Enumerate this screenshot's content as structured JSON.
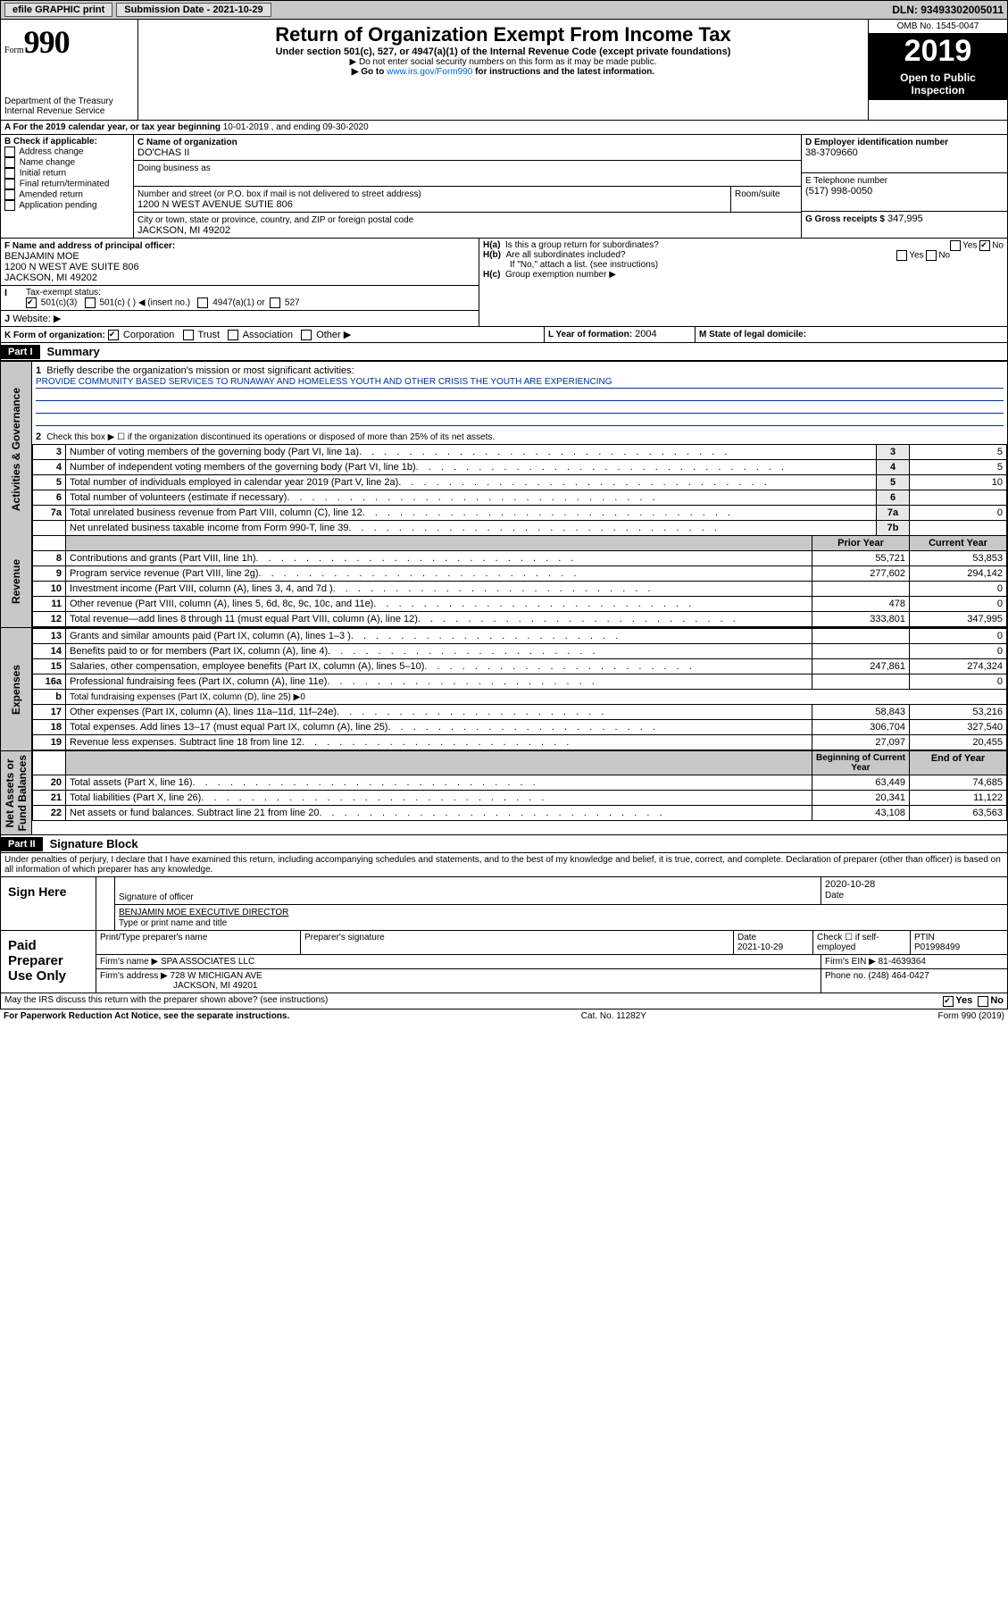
{
  "top": {
    "efile": "efile GRAPHIC print",
    "submission": "Submission Date - 2021-10-29",
    "dln": "DLN: 93493302005011"
  },
  "header": {
    "formword": "Form",
    "form": "990",
    "dept": "Department of the Treasury\nInternal Revenue Service",
    "title": "Return of Organization Exempt From Income Tax",
    "sub": "Under section 501(c), 527, or 4947(a)(1) of the Internal Revenue Code (except private foundations)",
    "note1": "▶ Do not enter social security numbers on this form as it may be made public.",
    "note2a": "▶ Go to ",
    "note2link": "www.irs.gov/Form990",
    "note2b": " for instructions and the latest information.",
    "omb": "OMB No. 1545-0047",
    "year": "2019",
    "open": "Open to Public Inspection"
  },
  "lineA": {
    "prefix": "A  For the 2019 calendar year, or tax year beginning ",
    "begin": "10-01-2019",
    "mid": " , and ending ",
    "end": "09-30-2020"
  },
  "boxB": {
    "label": "B Check if applicable:",
    "opts": [
      "Address change",
      "Name change",
      "Initial return",
      "Final return/terminated",
      "Amended return",
      "Application pending"
    ]
  },
  "boxC": {
    "label": "C Name of organization",
    "org": "DO'CHAS II",
    "dba_label": "Doing business as",
    "addr_label": "Number and street (or P.O. box if mail is not delivered to street address)",
    "room": "Room/suite",
    "addr": "1200 N WEST AVENUE SUTIE 806",
    "city_label": "City or town, state or province, country, and ZIP or foreign postal code",
    "city": "JACKSON, MI  49202"
  },
  "boxD": {
    "label": "D Employer identification number",
    "ein": "38-3709660"
  },
  "boxE": {
    "label": "E Telephone number",
    "phone": "(517) 998-0050"
  },
  "boxG": {
    "label": "G Gross receipts $",
    "val": "347,995"
  },
  "boxF": {
    "label": "F  Name and address of principal officer:",
    "name": "BENJAMIN MOE",
    "addr1": "1200 N WEST AVE SUITE 806",
    "addr2": "JACKSON, MI  49202"
  },
  "boxH": {
    "a_label": "H(a)",
    "a_text": "Is this a group return for subordinates?",
    "a_no": true,
    "b_label": "H(b)",
    "b_text": "Are all subordinates included?",
    "b_note": "If \"No,\" attach a list. (see instructions)",
    "c_label": "H(c)",
    "c_text": "Group exemption number ▶"
  },
  "boxI": {
    "label": "I",
    "text": "Tax-exempt status:",
    "opt1": "501(c)(3)",
    "opt2": "501(c) (   ) ◀ (insert no.)",
    "opt3": "4947(a)(1) or",
    "opt4": "527"
  },
  "boxJ": {
    "label": "J",
    "text": "Website: ▶"
  },
  "boxK": {
    "label": "K Form of organization:",
    "opts": [
      "Corporation",
      "Trust",
      "Association",
      "Other ▶"
    ]
  },
  "boxL": {
    "label": "L Year of formation:",
    "val": "2004"
  },
  "boxM": {
    "label": "M State of legal domicile:"
  },
  "part1": {
    "label": "Part I",
    "title": "Summary"
  },
  "mission": {
    "num": "1",
    "text": "Briefly describe the organization's mission or most significant activities:",
    "body": "PROVIDE COMMUNITY BASED SERVICES TO RUNAWAY AND HOMELESS YOUTH AND OTHER CRISIS THE YOUTH ARE EXPERIENCING"
  },
  "line2": {
    "num": "2",
    "text": "Check this box ▶ ☐ if the organization discontinued its operations or disposed of more than 25% of its net assets."
  },
  "govlines": [
    {
      "n": "3",
      "t": "Number of voting members of the governing body (Part VI, line 1a)",
      "b": "3",
      "v": "5"
    },
    {
      "n": "4",
      "t": "Number of independent voting members of the governing body (Part VI, line 1b)",
      "b": "4",
      "v": "5"
    },
    {
      "n": "5",
      "t": "Total number of individuals employed in calendar year 2019 (Part V, line 2a)",
      "b": "5",
      "v": "10"
    },
    {
      "n": "6",
      "t": "Total number of volunteers (estimate if necessary)",
      "b": "6",
      "v": ""
    },
    {
      "n": "7a",
      "t": "Total unrelated business revenue from Part VIII, column (C), line 12",
      "b": "7a",
      "v": "0"
    },
    {
      "n": "",
      "t": "Net unrelated business taxable income from Form 990-T, line 39",
      "b": "7b",
      "v": ""
    }
  ],
  "colheads": {
    "prior": "Prior Year",
    "current": "Current Year",
    "begin": "Beginning of Current Year",
    "endyr": "End of Year"
  },
  "revenue": [
    {
      "n": "8",
      "t": "Contributions and grants (Part VIII, line 1h)",
      "p": "55,721",
      "c": "53,853"
    },
    {
      "n": "9",
      "t": "Program service revenue (Part VIII, line 2g)",
      "p": "277,602",
      "c": "294,142"
    },
    {
      "n": "10",
      "t": "Investment income (Part VIII, column (A), lines 3, 4, and 7d )",
      "p": "",
      "c": "0"
    },
    {
      "n": "11",
      "t": "Other revenue (Part VIII, column (A), lines 5, 6d, 8c, 9c, 10c, and 11e)",
      "p": "478",
      "c": "0"
    },
    {
      "n": "12",
      "t": "Total revenue—add lines 8 through 11 (must equal Part VIII, column (A), line 12)",
      "p": "333,801",
      "c": "347,995"
    }
  ],
  "expenses": [
    {
      "n": "13",
      "t": "Grants and similar amounts paid (Part IX, column (A), lines 1–3 )",
      "p": "",
      "c": "0"
    },
    {
      "n": "14",
      "t": "Benefits paid to or for members (Part IX, column (A), line 4)",
      "p": "",
      "c": "0"
    },
    {
      "n": "15",
      "t": "Salaries, other compensation, employee benefits (Part IX, column (A), lines 5–10)",
      "p": "247,861",
      "c": "274,324"
    },
    {
      "n": "16a",
      "t": "Professional fundraising fees (Part IX, column (A), line 11e)",
      "p": "",
      "c": "0"
    },
    {
      "n": "b",
      "t": "Total fundraising expenses (Part IX, column (D), line 25) ▶0",
      "p": null,
      "c": null
    },
    {
      "n": "17",
      "t": "Other expenses (Part IX, column (A), lines 11a–11d, 11f–24e)",
      "p": "58,843",
      "c": "53,216"
    },
    {
      "n": "18",
      "t": "Total expenses. Add lines 13–17 (must equal Part IX, column (A), line 25)",
      "p": "306,704",
      "c": "327,540"
    },
    {
      "n": "19",
      "t": "Revenue less expenses. Subtract line 18 from line 12",
      "p": "27,097",
      "c": "20,455"
    }
  ],
  "netassets": [
    {
      "n": "20",
      "t": "Total assets (Part X, line 16)",
      "p": "63,449",
      "c": "74,685"
    },
    {
      "n": "21",
      "t": "Total liabilities (Part X, line 26)",
      "p": "20,341",
      "c": "11,122"
    },
    {
      "n": "22",
      "t": "Net assets or fund balances. Subtract line 21 from line 20",
      "p": "43,108",
      "c": "63,563"
    }
  ],
  "side_labels": {
    "gov": "Activities & Governance",
    "rev": "Revenue",
    "exp": "Expenses",
    "net": "Net Assets or\nFund Balances"
  },
  "part2": {
    "label": "Part II",
    "title": "Signature Block",
    "perjury": "Under penalties of perjury, I declare that I have examined this return, including accompanying schedules and statements, and to the best of my knowledge and belief, it is true, correct, and complete. Declaration of preparer (other than officer) is based on all information of which preparer has any knowledge."
  },
  "sign": {
    "left": "Sign Here",
    "sig": "Signature of officer",
    "date": "2020-10-28",
    "date_label": "Date",
    "name": "BENJAMIN MOE EXECUTIVE DIRECTOR",
    "name_label": "Type or print name and title"
  },
  "paid": {
    "left": "Paid Preparer Use Only",
    "h1": "Print/Type preparer's name",
    "h2": "Preparer's signature",
    "h3": "Date",
    "h4": "Check ☐ if self-employed",
    "h5": "PTIN",
    "date": "2021-10-29",
    "ptin": "P01998499",
    "firm_label": "Firm's name  ▶",
    "firm": "SPA ASSOCIATES LLC",
    "ein_label": "Firm's EIN ▶",
    "ein": "81-4639364",
    "addr_label": "Firm's address ▶",
    "addr1": "728 W MICHIGAN AVE",
    "addr2": "JACKSON, MI  49201",
    "phone_label": "Phone no.",
    "phone": "(248) 464-0427"
  },
  "discuss": {
    "text": "May the IRS discuss this return with the preparer shown above? (see instructions)",
    "yes": "Yes",
    "no": "No"
  },
  "footer": {
    "left": "For Paperwork Reduction Act Notice, see the separate instructions.",
    "mid": "Cat. No. 11282Y",
    "right": "Form 990 (2019)"
  }
}
